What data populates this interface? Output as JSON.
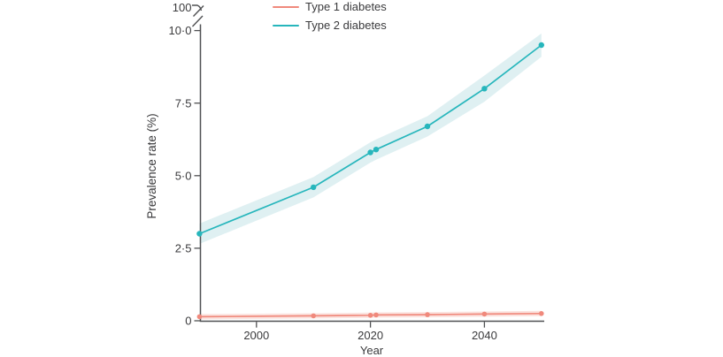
{
  "figure": {
    "legend": [
      {
        "label": "Type 1 diabetes",
        "color": "#f0897c"
      },
      {
        "label": "Type 2 diabetes",
        "color": "#27b6bc"
      }
    ],
    "y_axis": {
      "title": "Prevalence rate (%)",
      "tick_labels": [
        "0",
        "2·5",
        "5·0",
        "7·5",
        "10·0"
      ],
      "break_label": "100"
    },
    "x_axis": {
      "title": "Year",
      "tick_labels": [
        "2000",
        "2020",
        "2040"
      ]
    }
  },
  "chart_data": {
    "type": "line",
    "title": "",
    "xlabel": "Year",
    "ylabel": "Prevalence rate (%)",
    "x": [
      1990,
      2010,
      2020,
      2021,
      2030,
      2040,
      2050
    ],
    "x_tick_values": [
      2000,
      2020,
      2040
    ],
    "y_tick_values": [
      0,
      2.5,
      5,
      7.5,
      10
    ],
    "ylim": [
      0,
      10.5
    ],
    "y_axis_break_top_value": 100,
    "grid": false,
    "legend_position": "top-left",
    "markers": true,
    "ci_bands": true,
    "series": [
      {
        "name": "Type 1 diabetes",
        "color": "#f0897c",
        "band_color": "#fbe3df",
        "values": [
          0.14,
          0.17,
          0.19,
          0.2,
          0.21,
          0.23,
          0.25
        ],
        "band_upper": [
          0.23,
          0.26,
          0.28,
          0.29,
          0.3,
          0.32,
          0.34
        ],
        "band_lower": [
          0.05,
          0.08,
          0.1,
          0.11,
          0.12,
          0.14,
          0.16
        ]
      },
      {
        "name": "Type 2 diabetes",
        "color": "#27b6bc",
        "band_color": "#dff0f2",
        "values": [
          3.0,
          4.6,
          5.8,
          5.9,
          6.7,
          8.0,
          9.5
        ],
        "band_upper": [
          3.35,
          4.95,
          6.15,
          6.25,
          7.05,
          8.45,
          9.9
        ],
        "band_lower": [
          2.65,
          4.25,
          5.45,
          5.55,
          6.35,
          7.55,
          9.1
        ]
      }
    ],
    "axis_color": "#4f5052",
    "text_color": "#3a3a3c"
  }
}
